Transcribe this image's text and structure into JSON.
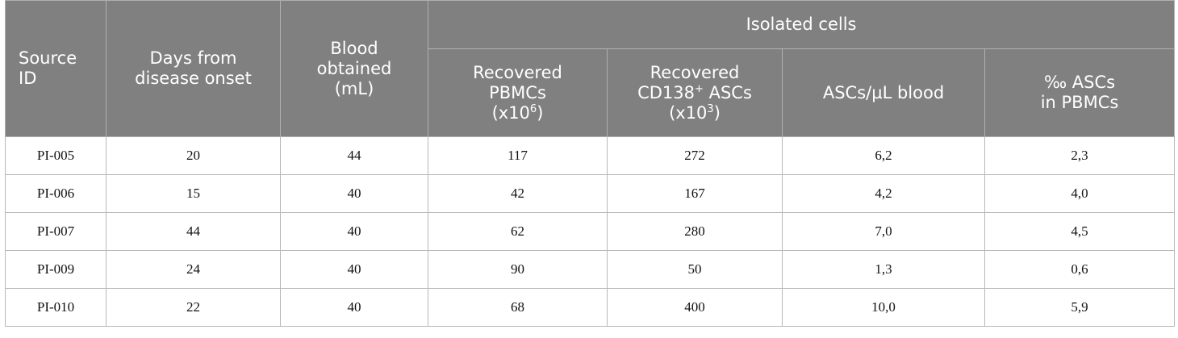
{
  "table": {
    "columns": [
      {
        "lines": [
          [
            "Source"
          ],
          [
            "ID"
          ]
        ]
      },
      {
        "lines": [
          [
            "Days from"
          ],
          [
            "disease onset"
          ]
        ]
      },
      {
        "lines": [
          [
            "Blood"
          ],
          [
            "obtained"
          ],
          [
            "(mL)"
          ]
        ]
      }
    ],
    "group": "Isolated cells",
    "subcolumns": [
      {
        "lines": [
          [
            "Recovered"
          ],
          [
            "PBMCs"
          ],
          [
            "(x10",
            {
              "sup": "6"
            },
            ")"
          ]
        ]
      },
      {
        "lines": [
          [
            "Recovered"
          ],
          [
            "CD138",
            {
              "sup": "+"
            },
            " ASCs"
          ],
          [
            "(x10",
            {
              "sup": "3"
            },
            ")"
          ]
        ]
      },
      {
        "lines": [
          [
            "ASCs/µL blood"
          ]
        ]
      },
      {
        "lines": [
          [
            "‰ ASCs"
          ],
          [
            "in PBMCs"
          ]
        ]
      }
    ],
    "rows": [
      [
        "PI-005",
        "20",
        "44",
        "117",
        "272",
        "6,2",
        "2,3"
      ],
      [
        "PI-006",
        "15",
        "40",
        "42",
        "167",
        "4,2",
        "4,0"
      ],
      [
        "PI-007",
        "44",
        "40",
        "62",
        "280",
        "7,0",
        "4,5"
      ],
      [
        "PI-009",
        "24",
        "40",
        "90",
        "50",
        "1,3",
        "0,6"
      ],
      [
        "PI-010",
        "22",
        "40",
        "68",
        "400",
        "10,0",
        "5,9"
      ]
    ]
  }
}
